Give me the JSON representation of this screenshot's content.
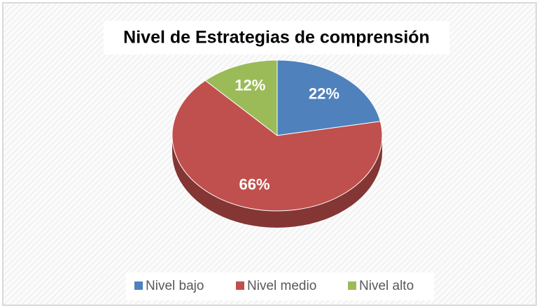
{
  "chart_data": {
    "type": "pie",
    "title": "Nivel de Estrategias de comprensión",
    "categories": [
      "Nivel bajo",
      "Nivel medio",
      "Nivel alto"
    ],
    "values": [
      22,
      66,
      12
    ],
    "value_labels": [
      "22%",
      "66%",
      "12%"
    ],
    "colors": [
      "#4f81bd",
      "#c0504d",
      "#9bbb59"
    ],
    "legend": "bottom"
  }
}
